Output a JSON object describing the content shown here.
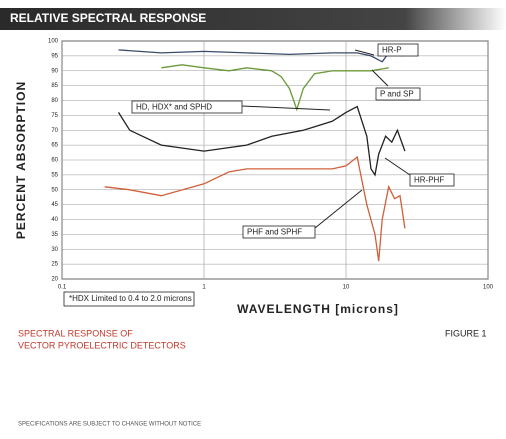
{
  "chart_data": {
    "type": "line",
    "title": "RELATIVE SPECTRAL RESPONSE",
    "x_label": "WAVELENGTH [microns]",
    "y_label": "PERCENT ABSORPTION",
    "x_scale": "log",
    "grid": true,
    "xlim": [
      0.1,
      100
    ],
    "xticks": [
      {
        "value": 0.1,
        "label": "0.1"
      },
      1,
      10,
      100
    ],
    "ylim": [
      20,
      100
    ],
    "yticks": [
      20,
      25,
      30,
      35,
      40,
      45,
      50,
      55,
      60,
      65,
      70,
      75,
      80,
      85,
      90,
      95,
      100
    ],
    "series": [
      {
        "name": "HR-P",
        "color": "#3a4a6a",
        "x": [
          0.25,
          0.5,
          1,
          2,
          4,
          8,
          12,
          15,
          18,
          20,
          25
        ],
        "values": [
          97,
          96,
          96.5,
          96,
          95.5,
          96,
          96,
          95,
          93,
          96,
          95
        ]
      },
      {
        "name": "P and SP",
        "color": "#6a9a3a",
        "x": [
          0.5,
          0.7,
          1,
          1.5,
          2,
          3,
          3.5,
          4,
          4.5,
          5,
          6,
          8,
          10,
          15,
          20
        ],
        "values": [
          91,
          92,
          91,
          90,
          91,
          90,
          88,
          84,
          77,
          84,
          89,
          90,
          90,
          90,
          91
        ]
      },
      {
        "name": "HD, HDX* and SPHD",
        "color": "#222222",
        "x": [
          0.25,
          0.3,
          0.5,
          1,
          2,
          3,
          5,
          8,
          10,
          12,
          14,
          15,
          16,
          17,
          19,
          21,
          23,
          26
        ],
        "values": [
          76,
          70,
          65,
          63,
          65,
          68,
          70,
          73,
          76,
          78,
          68,
          57,
          55,
          62,
          68,
          66,
          70,
          63
        ]
      },
      {
        "name": "HR-PHF",
        "color": "#222222",
        "x": [],
        "values": []
      },
      {
        "name": "PHF and SPHF",
        "color": "#d0603a",
        "x": [
          0.2,
          0.3,
          0.5,
          1,
          1.5,
          2,
          4,
          8,
          10,
          12,
          14,
          16,
          17,
          18,
          20,
          22,
          24,
          26
        ],
        "values": [
          51,
          50,
          48,
          52,
          56,
          57,
          57,
          57,
          58,
          61,
          45,
          35,
          26,
          40,
          51,
          47,
          48,
          37
        ]
      }
    ],
    "footnote": "*HDX Limited to 0.4 to 2.0 microns",
    "caption": [
      "SPECTRAL RESPONSE OF",
      "VECTOR PYROELECTRIC DETECTORS"
    ],
    "figure_label": "FIGURE 1",
    "disclaimer": "SPECIFICATIONS ARE SUBJECT TO CHANGE WITHOUT NOTICE"
  }
}
